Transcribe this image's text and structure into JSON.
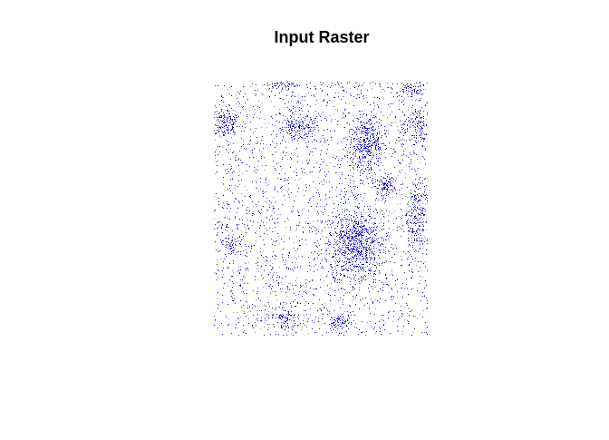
{
  "title": "Input Raster"
}
